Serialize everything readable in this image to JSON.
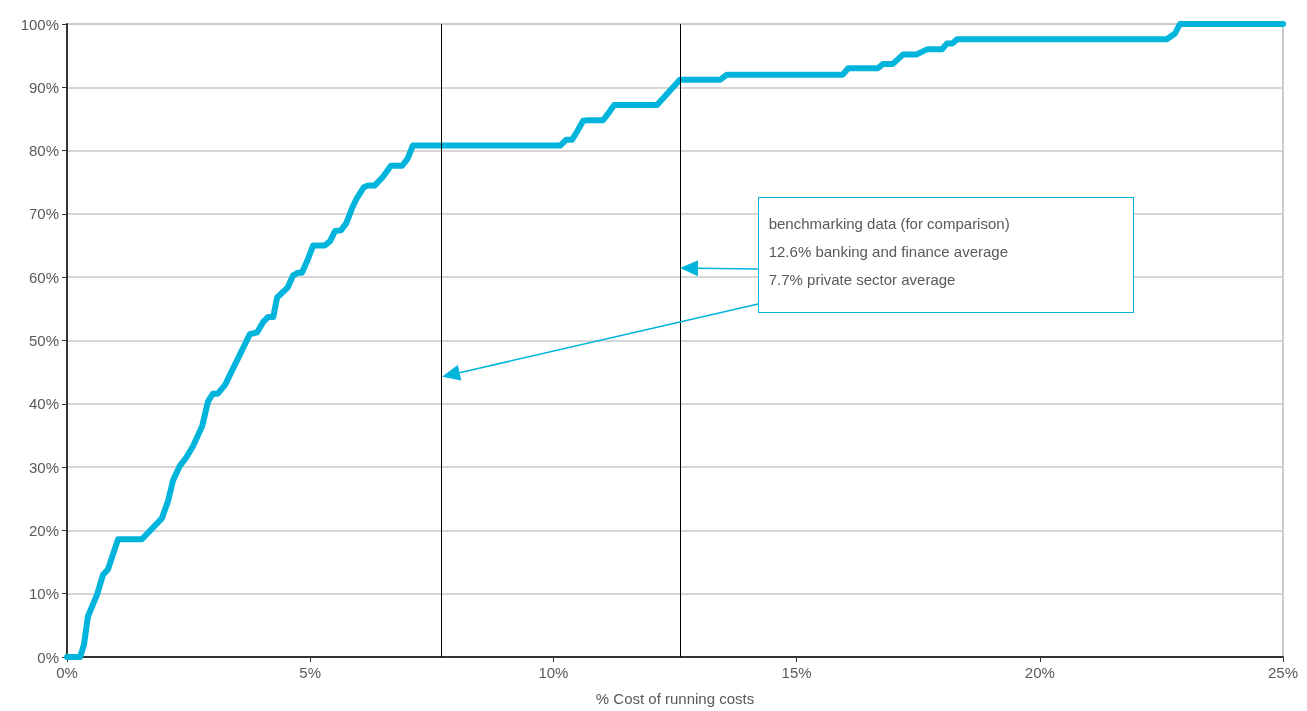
{
  "chart_data": {
    "type": "line",
    "xlabel": "% Cost of running costs",
    "annotations": [
      "benchmarking data (for comparison)",
      "12.6% banking and finance average",
      "7.7% private sector average"
    ],
    "xlim": [
      0,
      25
    ],
    "xticks": [
      {
        "value": 0,
        "label": "0%"
      },
      {
        "value": 5,
        "label": "5%"
      },
      {
        "value": 10,
        "label": "10%"
      },
      {
        "value": 15,
        "label": "15%"
      },
      {
        "value": 20,
        "label": "20%"
      },
      {
        "value": 25,
        "label": "25%"
      }
    ],
    "ylim": [
      0,
      100
    ],
    "yticks": [
      {
        "value": 0,
        "label": "0%"
      },
      {
        "value": 10,
        "label": "10%"
      },
      {
        "value": 20,
        "label": "20%"
      },
      {
        "value": 30,
        "label": "30%"
      },
      {
        "value": 40,
        "label": "40%"
      },
      {
        "value": 50,
        "label": "50%"
      },
      {
        "value": 60,
        "label": "60%"
      },
      {
        "value": 70,
        "label": "70%"
      },
      {
        "value": 80,
        "label": "80%"
      },
      {
        "value": 90,
        "label": "90%"
      },
      {
        "value": 100,
        "label": "100%"
      }
    ],
    "grid": "y",
    "marker": "none",
    "line_style": "solid",
    "ref_lines": [
      {
        "axis": "x",
        "value": 7.7,
        "color": "#000000"
      },
      {
        "axis": "x",
        "value": 12.6,
        "color": "#000000"
      }
    ],
    "series": [
      {
        "color": "#00b4dc",
        "x": [
          0,
          0.27,
          0.35,
          0.43,
          0.62,
          0.74,
          0.84,
          1.05,
          1.54,
          1.95,
          2.08,
          2.18,
          2.32,
          2.45,
          2.59,
          2.78,
          2.9,
          3.0,
          3.1,
          3.25,
          3.76,
          3.91,
          4.03,
          4.13,
          4.24,
          4.32,
          4.54,
          4.65,
          4.75,
          4.83,
          4.95,
          5.06,
          5.3,
          5.41,
          5.51,
          5.63,
          5.74,
          5.86,
          5.96,
          6.1,
          6.19,
          6.33,
          6.5,
          6.66,
          6.89,
          7.0,
          7.11,
          10.14,
          10.26,
          10.38,
          10.48,
          10.61,
          10.71,
          11.02,
          11.12,
          11.25,
          12.13,
          12.6,
          13.43,
          13.57,
          15.95,
          16.06,
          16.67,
          16.78,
          16.98,
          17.19,
          17.47,
          17.68,
          17.99,
          18.09,
          18.2,
          18.3,
          22.61,
          22.78,
          22.88,
          25
        ],
        "values": [
          0,
          0,
          2,
          6.4,
          9.9,
          13,
          13.8,
          18.6,
          18.6,
          21.9,
          24.7,
          27.9,
          30.2,
          31.5,
          33.3,
          36.5,
          40.4,
          41.6,
          41.6,
          43,
          51,
          51.3,
          52.9,
          53.7,
          53.7,
          56.8,
          58.4,
          60.3,
          60.7,
          60.7,
          62.8,
          65,
          65,
          65.7,
          67.3,
          67.4,
          68.5,
          70.9,
          72.5,
          74.2,
          74.5,
          74.5,
          75.9,
          77.6,
          77.6,
          78.7,
          80.8,
          80.8,
          81.7,
          81.7,
          82.9,
          84.7,
          84.8,
          84.8,
          85.8,
          87.2,
          87.2,
          91.2,
          91.2,
          92,
          92,
          93,
          93,
          93.7,
          93.7,
          95.2,
          95.2,
          96,
          96,
          96.9,
          96.9,
          97.6,
          97.6,
          98.5,
          100,
          100
        ]
      }
    ]
  }
}
